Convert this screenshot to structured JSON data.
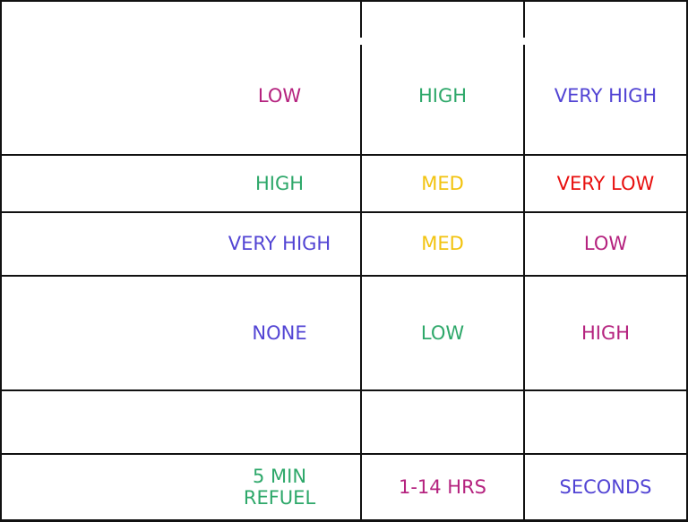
{
  "rows": [
    {
      "cells": [
        {
          "text": "",
          "color": "#000000"
        },
        {
          "text": "",
          "color": "#000000"
        },
        {
          "text": "",
          "color": "#000000"
        }
      ]
    },
    {
      "cells": [
        {
          "text": "LOW",
          "color": "#b5237f"
        },
        {
          "text": "HIGH",
          "color": "#2ea86a"
        },
        {
          "text": "VERY HIGH",
          "color": "#5244d4"
        }
      ]
    },
    {
      "cells": [
        {
          "text": "HIGH",
          "color": "#2ea86a"
        },
        {
          "text": "MED",
          "color": "#f2c30f"
        },
        {
          "text": "VERY LOW",
          "color": "#e8100f"
        }
      ]
    },
    {
      "cells": [
        {
          "text": "VERY HIGH",
          "color": "#5244d4"
        },
        {
          "text": "MED",
          "color": "#f2c30f"
        },
        {
          "text": "LOW",
          "color": "#b5237f"
        }
      ]
    },
    {
      "cells": [
        {
          "text": "NONE",
          "color": "#5244d4"
        },
        {
          "text": "LOW",
          "color": "#2ea86a"
        },
        {
          "text": "HIGH",
          "color": "#b5237f"
        }
      ]
    },
    {
      "cells": [
        {
          "text": "",
          "color": "#000000"
        },
        {
          "text": "",
          "color": "#000000"
        },
        {
          "text": "",
          "color": "#000000"
        }
      ]
    },
    {
      "cells": [
        {
          "text": "5 MIN\nREFUEL",
          "color": "#2ea86a"
        },
        {
          "text": "1-14 HRS",
          "color": "#b5237f"
        },
        {
          "text": "SECONDS",
          "color": "#5244d4"
        }
      ]
    }
  ]
}
